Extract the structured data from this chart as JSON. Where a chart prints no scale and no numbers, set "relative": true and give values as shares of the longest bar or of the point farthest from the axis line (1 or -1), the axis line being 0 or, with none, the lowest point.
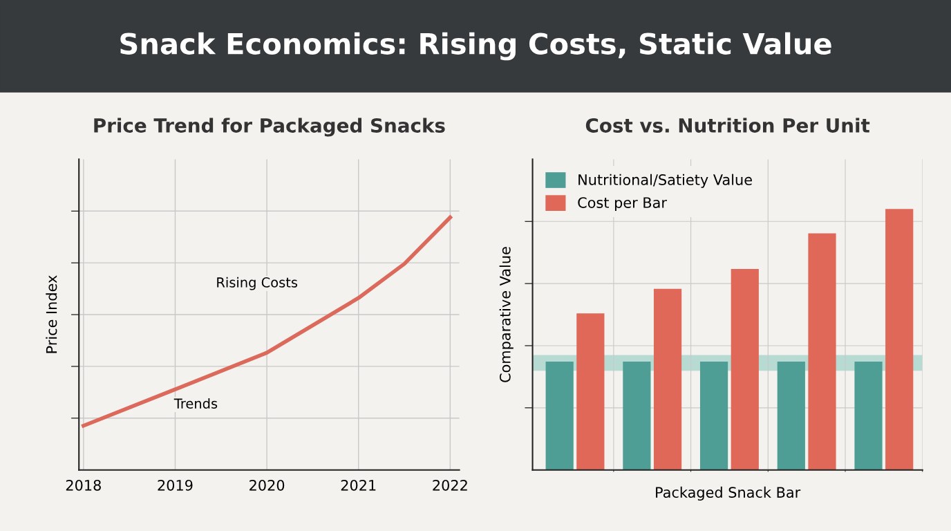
{
  "chart_data": [
    {
      "type": "line",
      "title": "Price Trend for Packaged Snacks",
      "ylabel": "Price Index",
      "relative": true,
      "annotations": [
        "Snack Economics: Rising Costs, Static Value",
        "Rising Costs",
        "Trends"
      ],
      "x": [
        2018,
        2019,
        2020,
        2021,
        2021.5,
        2022
      ],
      "xlim": [
        2017.95,
        2022.1
      ],
      "xticks": [
        2018,
        2019,
        2020,
        2021,
        2022
      ],
      "series": [
        {
          "color": "#dc6a5c",
          "values": [
            0.175,
            0.319,
            0.464,
            0.681,
            0.816,
            1
          ]
        }
      ],
      "grid": true,
      "marker": "none",
      "line_style": "solid",
      "tick_labels": "x"
    },
    {
      "type": "bar",
      "title": "Cost vs. Nutrition Per Unit",
      "xlabel": "Packaged Snack Bar",
      "ylabel": "Comparative Value",
      "relative": true,
      "categories": [
        null,
        null,
        null,
        null,
        null
      ],
      "series": [
        {
          "name": "Nutritional/Satiety Value",
          "color": "#4e9e96",
          "values": [
            0.415,
            0.415,
            0.415,
            0.415,
            0.415
          ]
        },
        {
          "name": "Cost per Bar",
          "color": "#e06858",
          "values": [
            0.6,
            0.694,
            0.77,
            0.906,
            1
          ]
        }
      ],
      "bands": [
        {
          "axis": "y",
          "from": 0.38,
          "to": 0.44,
          "color": "#a8d5cc"
        }
      ],
      "grid": true,
      "legend": "top left",
      "tick_labels": false
    }
  ]
}
